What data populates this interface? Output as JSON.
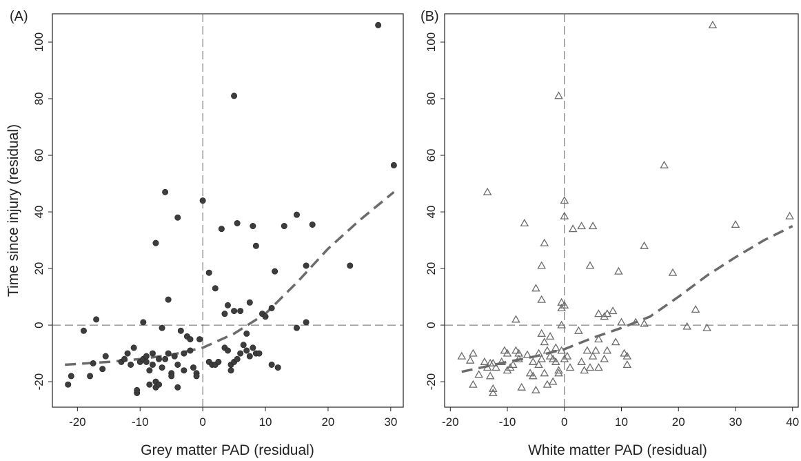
{
  "chart_data": [
    {
      "type": "scatter",
      "panel_label": "(A)",
      "xlabel": "Grey matter PAD (residual)",
      "ylabel": "Time since injury (residual)",
      "xlim": [
        -24,
        32
      ],
      "ylim": [
        -29,
        110
      ],
      "xticks": [
        -20,
        -10,
        0,
        10,
        20,
        30
      ],
      "yticks": [
        -20,
        0,
        20,
        40,
        60,
        80,
        100
      ],
      "reference_lines": {
        "x": 0,
        "y": 0,
        "style": "dashed"
      },
      "marker": "filled-circle",
      "marker_color": "#3d3d3d",
      "fit_line_color": "#6b6b6b",
      "points": [
        [
          28,
          106
        ],
        [
          30.5,
          56.5
        ],
        [
          5,
          81
        ],
        [
          0,
          44
        ],
        [
          -6,
          47
        ],
        [
          -4,
          38
        ],
        [
          -7.5,
          29
        ],
        [
          5.5,
          36
        ],
        [
          3,
          34
        ],
        [
          8,
          35
        ],
        [
          8.5,
          28
        ],
        [
          13,
          35
        ],
        [
          15,
          39
        ],
        [
          17.5,
          35.5
        ],
        [
          23.5,
          21
        ],
        [
          16.5,
          21
        ],
        [
          11.5,
          19
        ],
        [
          1,
          18.5
        ],
        [
          2,
          13
        ],
        [
          -5.5,
          9
        ],
        [
          3.5,
          4
        ],
        [
          4,
          7
        ],
        [
          5,
          5
        ],
        [
          6,
          5
        ],
        [
          7.5,
          8
        ],
        [
          9.5,
          4
        ],
        [
          10,
          3
        ],
        [
          11,
          6
        ],
        [
          16.5,
          1
        ],
        [
          -17,
          2
        ],
        [
          -19,
          -2
        ],
        [
          -9.5,
          1
        ],
        [
          -6.5,
          -1
        ],
        [
          7,
          -3
        ],
        [
          15,
          -1
        ],
        [
          -21.5,
          -21
        ],
        [
          -21,
          -18
        ],
        [
          -18,
          -18
        ],
        [
          -17.5,
          -13.5
        ],
        [
          -16,
          -15.5
        ],
        [
          -15.5,
          -11
        ],
        [
          -13,
          -13
        ],
        [
          -12.5,
          -12
        ],
        [
          -12,
          -10
        ],
        [
          -11.5,
          -14
        ],
        [
          -11,
          -8
        ],
        [
          -10.5,
          -24
        ],
        [
          -10.5,
          -23
        ],
        [
          -10,
          -13
        ],
        [
          -9.5,
          -12
        ],
        [
          -9,
          -11
        ],
        [
          -9,
          -13
        ],
        [
          -8.5,
          -16
        ],
        [
          -8.5,
          -21
        ],
        [
          -8,
          -10
        ],
        [
          -8,
          -14
        ],
        [
          -7.5,
          -20
        ],
        [
          -7.5,
          -22
        ],
        [
          -7,
          -21
        ],
        [
          -7,
          -12
        ],
        [
          -6.5,
          -15
        ],
        [
          -6,
          -12
        ],
        [
          -5.5,
          -10
        ],
        [
          -5,
          -17
        ],
        [
          -5,
          -18
        ],
        [
          -4.5,
          -11
        ],
        [
          -4,
          -14
        ],
        [
          -4,
          -22
        ],
        [
          -3.5,
          -2
        ],
        [
          -3,
          -10
        ],
        [
          -3,
          -16
        ],
        [
          -2.5,
          -4
        ],
        [
          -2,
          -5
        ],
        [
          -2,
          -9
        ],
        [
          -1.5,
          -15
        ],
        [
          -1,
          -17
        ],
        [
          -1,
          -18
        ],
        [
          -0.5,
          -5
        ],
        [
          1,
          -13
        ],
        [
          1.5,
          -14
        ],
        [
          2,
          -14
        ],
        [
          2.5,
          -13
        ],
        [
          3.5,
          -8
        ],
        [
          4,
          -9
        ],
        [
          4.5,
          -14
        ],
        [
          4.5,
          -16
        ],
        [
          5,
          -13
        ],
        [
          5.5,
          -12
        ],
        [
          6,
          -10
        ],
        [
          6.5,
          -7
        ],
        [
          7,
          -9
        ],
        [
          7.5,
          -11
        ],
        [
          8,
          -8
        ],
        [
          8.5,
          -10
        ],
        [
          9,
          -10
        ],
        [
          11,
          -14
        ],
        [
          12,
          -15
        ]
      ],
      "fit_line": [
        [
          -22,
          -14
        ],
        [
          -15,
          -13
        ],
        [
          -10,
          -12
        ],
        [
          -5,
          -10.5
        ],
        [
          0,
          -8
        ],
        [
          5,
          -3
        ],
        [
          10,
          4
        ],
        [
          15,
          15
        ],
        [
          20,
          27
        ],
        [
          25,
          37
        ],
        [
          30.5,
          47
        ]
      ]
    },
    {
      "type": "scatter",
      "panel_label": "(B)",
      "xlabel": "White matter PAD (residual)",
      "ylabel": "",
      "xlim": [
        -21,
        41
      ],
      "ylim": [
        -29,
        110
      ],
      "xticks": [
        -20,
        -10,
        0,
        10,
        20,
        30,
        40
      ],
      "yticks": [
        -20,
        0,
        20,
        40,
        60,
        80,
        100
      ],
      "reference_lines": {
        "x": 0,
        "y": 0,
        "style": "dashed"
      },
      "marker": "open-triangle",
      "marker_color": "#6b6b6b",
      "fit_line_color": "#6b6b6b",
      "points": [
        [
          26,
          106
        ],
        [
          -1,
          81
        ],
        [
          17.5,
          56.5
        ],
        [
          -13.5,
          47
        ],
        [
          0,
          44
        ],
        [
          0,
          38.5
        ],
        [
          39.5,
          38.5
        ],
        [
          -7,
          36
        ],
        [
          1.5,
          34
        ],
        [
          3,
          35
        ],
        [
          5,
          35
        ],
        [
          30,
          35.5
        ],
        [
          14,
          28
        ],
        [
          -3.5,
          29
        ],
        [
          -4,
          21
        ],
        [
          4.5,
          21
        ],
        [
          9.5,
          19
        ],
        [
          19,
          18.5
        ],
        [
          -5,
          13
        ],
        [
          -4,
          9
        ],
        [
          0,
          7
        ],
        [
          -0.5,
          8
        ],
        [
          -0.5,
          6
        ],
        [
          6,
          4
        ],
        [
          7,
          3
        ],
        [
          7.5,
          4
        ],
        [
          8.5,
          5
        ],
        [
          10,
          1
        ],
        [
          12.5,
          1
        ],
        [
          14,
          0.5
        ],
        [
          21.5,
          -0.5
        ],
        [
          23,
          5.5
        ],
        [
          25,
          -1
        ],
        [
          -8.5,
          2
        ],
        [
          -0.5,
          0
        ],
        [
          -18,
          -11
        ],
        [
          -16.5,
          -12.5
        ],
        [
          -16,
          -10
        ],
        [
          -16,
          -21
        ],
        [
          -15,
          -17.5
        ],
        [
          -14,
          -13
        ],
        [
          -13.5,
          -15
        ],
        [
          -13,
          -13.5
        ],
        [
          -13,
          -18
        ],
        [
          -12.5,
          -13.5
        ],
        [
          -12.5,
          -22.5
        ],
        [
          -12.5,
          -24
        ],
        [
          -12,
          -15
        ],
        [
          -11,
          -13
        ],
        [
          -10.5,
          -9
        ],
        [
          -10,
          -10
        ],
        [
          -10,
          -16
        ],
        [
          -9.5,
          -15
        ],
        [
          -9,
          -14
        ],
        [
          -8.5,
          -9
        ],
        [
          -8,
          -10
        ],
        [
          -8,
          -12
        ],
        [
          -7.5,
          -22
        ],
        [
          -6.5,
          -10.5
        ],
        [
          -6,
          -17
        ],
        [
          -5.5,
          -18
        ],
        [
          -5.5,
          -13
        ],
        [
          -5,
          -23
        ],
        [
          -4.5,
          -10
        ],
        [
          -4.5,
          -14
        ],
        [
          -4,
          -12
        ],
        [
          -4,
          -3
        ],
        [
          -3.5,
          -6
        ],
        [
          -3.5,
          -17
        ],
        [
          -3,
          -21
        ],
        [
          -3,
          -9
        ],
        [
          -2.5,
          -4
        ],
        [
          -2.5,
          -11
        ],
        [
          -2,
          -20
        ],
        [
          -2,
          -12
        ],
        [
          -1.5,
          -8
        ],
        [
          -1.5,
          -13
        ],
        [
          -1,
          -17
        ],
        [
          -1,
          -16
        ],
        [
          -0.5,
          -9
        ],
        [
          0,
          -12
        ],
        [
          0.5,
          -11
        ],
        [
          1,
          -15
        ],
        [
          2.5,
          -2
        ],
        [
          3,
          -13
        ],
        [
          3.5,
          -16
        ],
        [
          4,
          -9
        ],
        [
          4.5,
          -15
        ],
        [
          5,
          -11
        ],
        [
          5.5,
          -9
        ],
        [
          6,
          -15
        ],
        [
          6,
          -5
        ],
        [
          7,
          -12
        ],
        [
          7.5,
          -9
        ],
        [
          9,
          -6
        ],
        [
          10.5,
          -10
        ],
        [
          11,
          -11
        ],
        [
          11,
          -14
        ]
      ],
      "fit_line": [
        [
          -18,
          -16.5
        ],
        [
          -10,
          -13
        ],
        [
          -5,
          -11
        ],
        [
          0,
          -8.5
        ],
        [
          5,
          -4.5
        ],
        [
          10,
          -1
        ],
        [
          15,
          3
        ],
        [
          20,
          10
        ],
        [
          25,
          17.5
        ],
        [
          30,
          24
        ],
        [
          35,
          30
        ],
        [
          40,
          35
        ]
      ]
    }
  ]
}
